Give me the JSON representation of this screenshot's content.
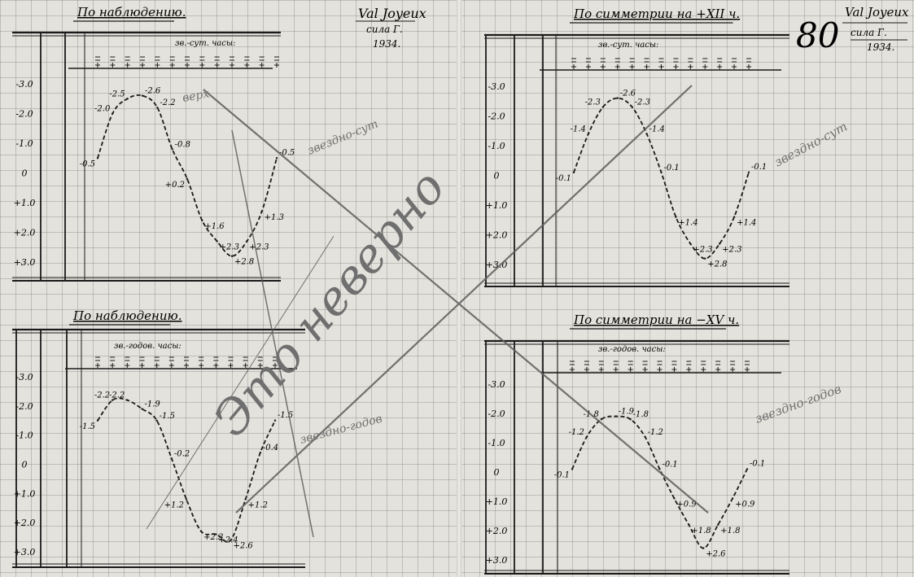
{
  "document": {
    "page_number": "80",
    "signature_left": {
      "line1": "Val Joyeux",
      "line2": "сила Г.",
      "line3": "1934."
    },
    "signature_right": {
      "line1": "Val Joyeux",
      "line2": "сила Г.",
      "line3": "1934."
    },
    "pencil_annotations": {
      "top_left_note": "верх",
      "top_middle_note": "звездно-сут",
      "top_right_note": "звездно-сут",
      "big_note": "Это неверно",
      "bottom_middle_note": "звездно-годов",
      "bottom_right_note": "звездно-годов"
    },
    "colors": {
      "ink": "#1a1a1a",
      "pencil": "#6f6f6f",
      "paper": "#e4e2dc",
      "grid": "#9a9a9a"
    }
  },
  "chart_data": [
    {
      "type": "line",
      "title": "По наблюдению.",
      "subtitle": "зв.-сут. часы:",
      "y_ticks": [
        "-3.0",
        "-2.0",
        "-1.0",
        "0",
        "+1.0",
        "+2.0",
        "+3.0"
      ],
      "ylim": [
        -3.0,
        3.0
      ],
      "y_inverted": true,
      "line_style": "dashed",
      "values": [
        -0.5,
        -2.0,
        -2.5,
        -2.6,
        -2.2,
        -0.8,
        0.2,
        1.6,
        2.3,
        2.8,
        2.3,
        1.3,
        -0.5
      ],
      "point_labels": [
        "-0.5",
        "-2.0",
        "-2.5",
        "-2.6",
        "-2.2",
        "-0.8",
        "+0.2",
        "+1.6",
        "+2.3",
        "+2.8",
        "+2.3",
        "+1.3",
        "-0.5"
      ],
      "grid": true
    },
    {
      "type": "line",
      "title": "По симметрии на +XII ч.",
      "subtitle": "зв.-сут. часы:",
      "y_ticks": [
        "-3.0",
        "-2.0",
        "-1.0",
        "0",
        "+1.0",
        "+2.0",
        "+3.0"
      ],
      "ylim": [
        -3.0,
        3.0
      ],
      "y_inverted": true,
      "line_style": "dashed",
      "values": [
        -0.1,
        -1.4,
        -2.3,
        -2.6,
        -2.3,
        -1.4,
        -0.1,
        1.4,
        2.3,
        2.8,
        2.3,
        1.4,
        -0.1
      ],
      "point_labels": [
        "-0.1",
        "-1.4",
        "-2.3",
        "-2.6",
        "-2.3",
        "-1.4",
        "-0.1",
        "+1.4",
        "+2.3",
        "+2.8",
        "+2.3",
        "+1.4",
        "-0.1"
      ],
      "grid": true
    },
    {
      "type": "line",
      "title": "По наблюдению.",
      "subtitle": "зв.-годов. часы:",
      "y_ticks": [
        "-3.0",
        "-2.0",
        "-1.0",
        "0",
        "+1.0",
        "+2.0",
        "+3.0"
      ],
      "ylim": [
        -3.0,
        3.0
      ],
      "y_inverted": true,
      "line_style": "dashed",
      "values": [
        -1.5,
        -2.2,
        -2.2,
        -1.9,
        -1.5,
        -0.2,
        1.2,
        2.3,
        2.4,
        2.6,
        1.2,
        -0.4,
        -1.5
      ],
      "point_labels": [
        "-1.5",
        "-2.2",
        "-2.2",
        "-1.9",
        "-1.5",
        "-0.2",
        "+1.2",
        "+2.3",
        "+2.4",
        "+2.6",
        "+1.2",
        "-0.4",
        "-1.5"
      ],
      "grid": true
    },
    {
      "type": "line",
      "title": "По симметрии на −XV ч.",
      "subtitle": "зв.-годов. часы:",
      "y_ticks": [
        "-3.0",
        "-2.0",
        "-1.0",
        "0",
        "+1.0",
        "+2.0",
        "+3.0"
      ],
      "ylim": [
        -3.0,
        3.0
      ],
      "y_inverted": true,
      "line_style": "dashed",
      "values": [
        -0.1,
        -1.2,
        -1.8,
        -1.9,
        -1.8,
        -1.2,
        -0.1,
        0.9,
        1.8,
        2.6,
        1.8,
        0.9,
        -0.1
      ],
      "point_labels": [
        "-0.1",
        "-1.2",
        "-1.8",
        "-1.9",
        "-1.8",
        "-1.2",
        "-0.1",
        "+0.9",
        "+1.8",
        "+2.6",
        "+1.8",
        "+0.9",
        "-0.1"
      ],
      "grid": true
    }
  ]
}
